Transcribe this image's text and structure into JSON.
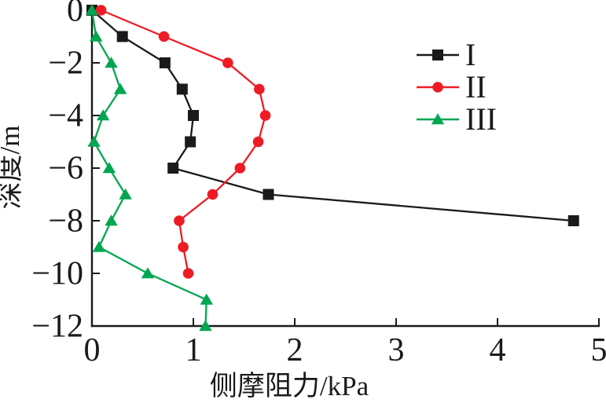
{
  "chart_data": {
    "type": "line",
    "title": "",
    "xlabel": "侧摩阻力/kPa",
    "ylabel": "深度/m",
    "xlim": [
      0,
      5
    ],
    "ylim": [
      -12,
      0
    ],
    "grid": false,
    "x_tick_values": [
      0,
      1,
      2,
      3,
      4,
      5
    ],
    "x_tick_labels": [
      "0",
      "1",
      "2",
      "3",
      "4",
      "5"
    ],
    "y_tick_values": [
      0,
      -2,
      -4,
      -6,
      -8,
      -10,
      -12
    ],
    "y_tick_labels": [
      "0",
      "−2",
      "−4",
      "−6",
      "−8",
      "−10",
      "−12"
    ],
    "legend_position": "upper-right-inside",
    "axis_color": "#1a1a1a",
    "series": [
      {
        "name": "I",
        "marker": "square",
        "color": "#1a1a1a",
        "depths": [
          0,
          -1,
          -2,
          -3,
          -4,
          -5,
          -6,
          -7,
          -8
        ],
        "values": [
          0.0,
          0.3,
          0.72,
          0.89,
          1.0,
          0.97,
          0.8,
          1.74,
          4.75
        ]
      },
      {
        "name": "II",
        "marker": "circle",
        "color": "#ed1c24",
        "depths": [
          0,
          -1,
          -2,
          -3,
          -4,
          -5,
          -6,
          -7,
          -8,
          -9,
          -10
        ],
        "values": [
          0.09,
          0.71,
          1.34,
          1.65,
          1.71,
          1.64,
          1.46,
          1.19,
          0.86,
          0.9,
          0.95
        ]
      },
      {
        "name": "III",
        "marker": "triangle",
        "color": "#00a651",
        "depths": [
          0,
          -1,
          -2,
          -3,
          -4,
          -5,
          -6,
          -7,
          -8,
          -9,
          -10,
          -11,
          -12
        ],
        "values": [
          0.0,
          0.04,
          0.19,
          0.28,
          0.11,
          0.02,
          0.17,
          0.33,
          0.19,
          0.07,
          0.55,
          1.13,
          1.12
        ]
      }
    ]
  }
}
